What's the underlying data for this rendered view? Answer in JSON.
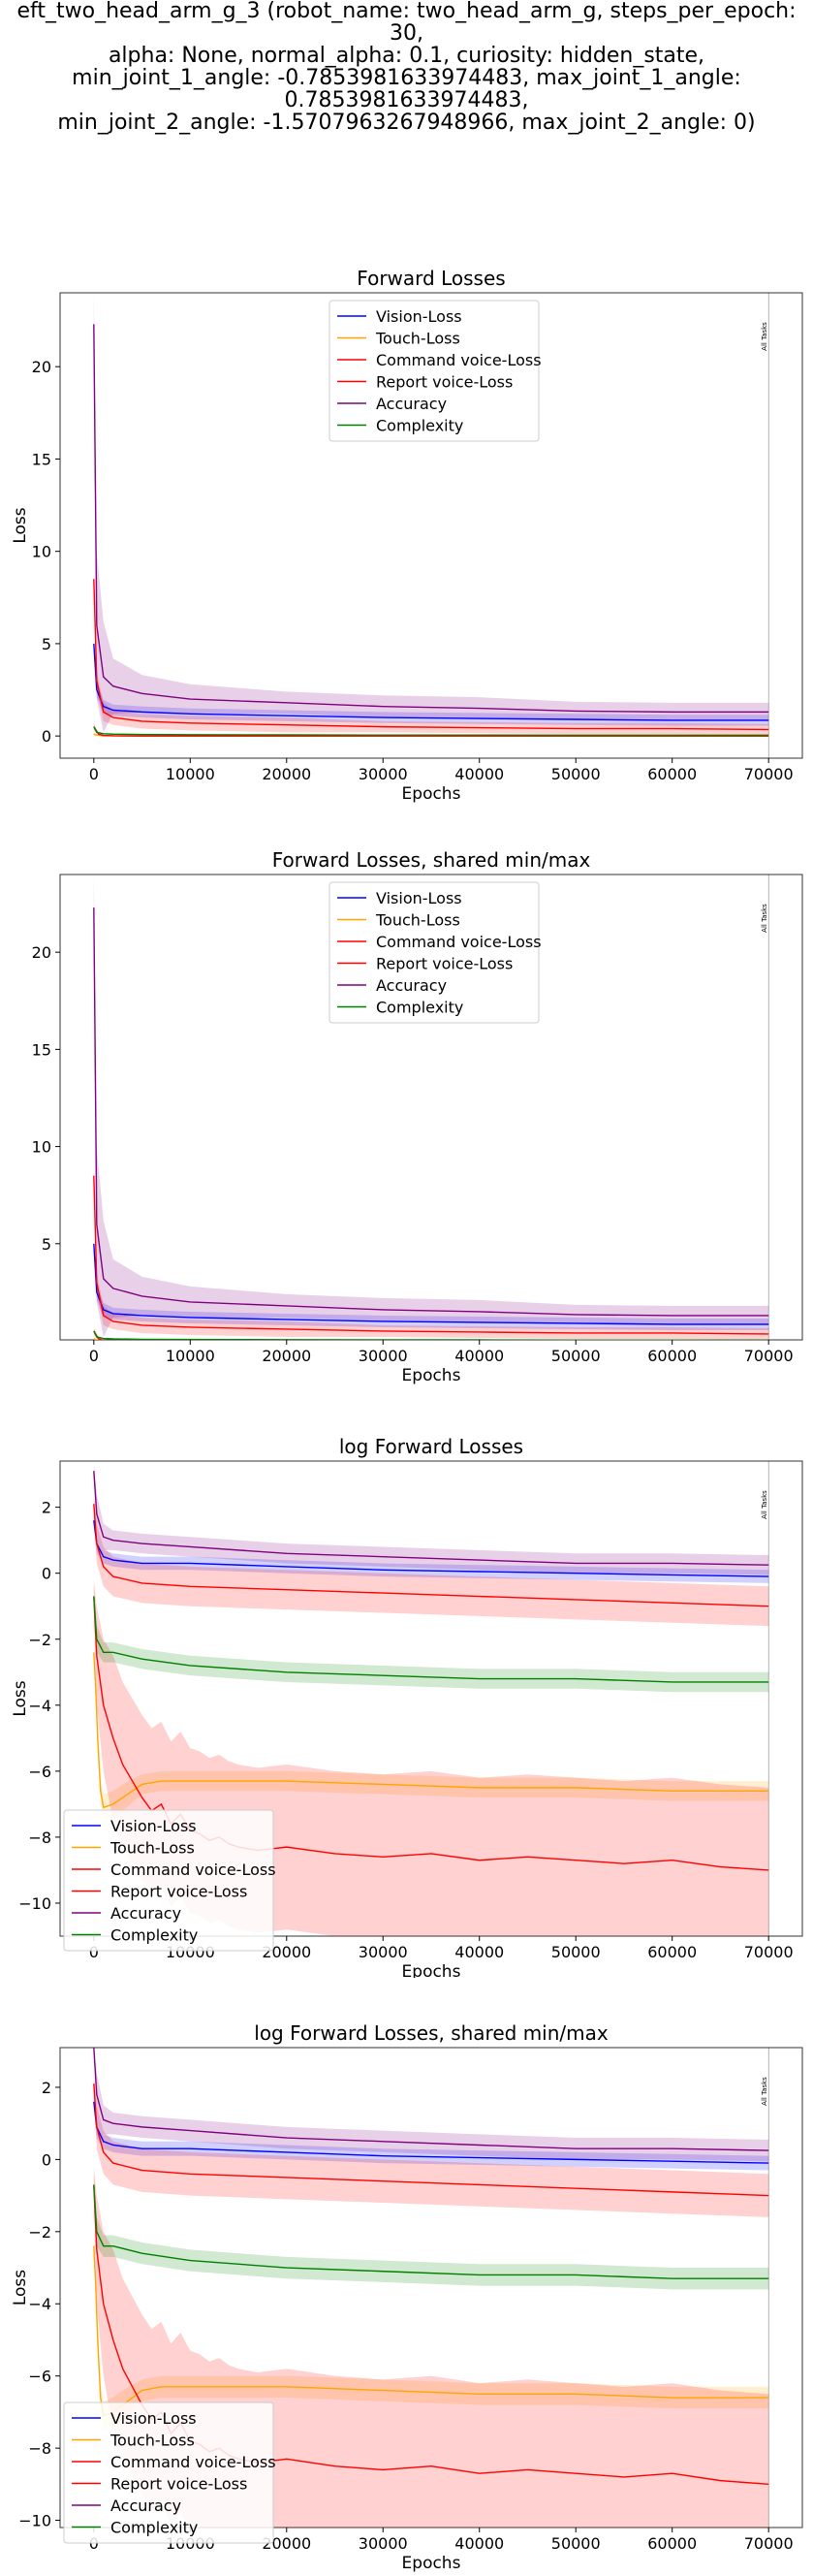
{
  "figure_title": "eft_two_head_arm_g_3 (robot_name: two_head_arm_g, steps_per_epoch: 30,\nalpha: None, normal_alpha: 0.1, curiosity: hidden_state,\nmin_joint_1_angle: -0.7853981633974483, max_joint_1_angle: 0.7853981633974483,\nmin_joint_2_angle: -1.5707963267948966, max_joint_2_angle: 0)",
  "colors": {
    "vision": "#0000ff",
    "touch": "#ffa500",
    "command": "#ff0000",
    "report": "#ff0000",
    "accuracy": "#800080",
    "complexity": "#008000"
  },
  "chart_data": [
    {
      "type": "line",
      "title": "Forward Losses",
      "xlabel": "Epochs",
      "ylabel": "Loss",
      "xlim": [
        -3500,
        73500
      ],
      "ylim": [
        -1.2,
        24.0
      ],
      "xticks": [
        0,
        10000,
        20000,
        30000,
        40000,
        50000,
        60000,
        70000
      ],
      "yticks": [
        0,
        5,
        10,
        15,
        20
      ],
      "marker_label": "All Tasks",
      "marker_x": 70000,
      "legend_loc": "upper center",
      "series": [
        {
          "name": "Vision-Loss",
          "color": "vision",
          "x": [
            0,
            300,
            1000,
            2000,
            5000,
            10000,
            20000,
            30000,
            40000,
            50000,
            60000,
            70000
          ],
          "y": [
            5.0,
            2.5,
            1.6,
            1.4,
            1.3,
            1.2,
            1.1,
            1.0,
            0.95,
            0.9,
            0.85,
            0.85
          ],
          "band": [
            0.4,
            0.4,
            0.35,
            0.3,
            0.3,
            0.3,
            0.3,
            0.3,
            0.3,
            0.3,
            0.3,
            0.3
          ]
        },
        {
          "name": "Touch-Loss",
          "color": "touch",
          "x": [
            0,
            300,
            1000,
            70000
          ],
          "y": [
            0.1,
            0.05,
            0.01,
            0.0
          ],
          "band": [
            0.1,
            0.05,
            0.0,
            0.0
          ]
        },
        {
          "name": "Command voice-Loss",
          "color": "command",
          "x": [
            0,
            300,
            1000,
            2000,
            5000,
            10000,
            20000,
            30000,
            40000,
            50000,
            60000,
            70000
          ],
          "y": [
            8.5,
            3.0,
            1.3,
            1.0,
            0.8,
            0.7,
            0.6,
            0.5,
            0.45,
            0.4,
            0.4,
            0.35
          ],
          "band": [
            0.5,
            0.5,
            0.5,
            0.4,
            0.4,
            0.4,
            0.4,
            0.3,
            0.3,
            0.3,
            0.3,
            0.3
          ]
        },
        {
          "name": "Report voice-Loss",
          "color": "report",
          "x": [
            0,
            500,
            1000,
            2000,
            5000,
            70000
          ],
          "y": [
            0.5,
            0.1,
            0.03,
            0.01,
            0.0,
            0.0
          ],
          "band": [
            0.2,
            0.05,
            0.0,
            0.0,
            0.0,
            0.0
          ]
        },
        {
          "name": "Accuracy",
          "color": "accuracy",
          "x": [
            0,
            300,
            1000,
            2000,
            5000,
            10000,
            20000,
            30000,
            40000,
            50000,
            60000,
            70000
          ],
          "y": [
            22.3,
            6.0,
            3.2,
            2.7,
            2.3,
            2.0,
            1.8,
            1.6,
            1.5,
            1.35,
            1.3,
            1.3
          ],
          "band": [
            2.0,
            4.0,
            3.0,
            1.5,
            1.0,
            0.8,
            0.6,
            0.6,
            0.6,
            0.5,
            0.5,
            0.5
          ]
        },
        {
          "name": "Complexity",
          "color": "complexity",
          "x": [
            0,
            300,
            1000,
            2000,
            5000,
            10000,
            20000,
            30000,
            40000,
            50000,
            60000,
            70000
          ],
          "y": [
            0.5,
            0.2,
            0.12,
            0.1,
            0.08,
            0.07,
            0.06,
            0.05,
            0.05,
            0.04,
            0.04,
            0.04
          ],
          "band": [
            0.1,
            0.05,
            0.02,
            0.02,
            0.02,
            0.02,
            0.02,
            0.02,
            0.02,
            0.02,
            0.02,
            0.02
          ]
        }
      ]
    },
    {
      "type": "line",
      "title": "Forward Losses, shared min/max",
      "xlabel": "Epochs",
      "ylabel": "",
      "xlim": [
        -3500,
        73500
      ],
      "ylim": [
        0.05,
        24.0
      ],
      "xticks": [
        0,
        10000,
        20000,
        30000,
        40000,
        50000,
        60000,
        70000
      ],
      "yticks": [
        5,
        10,
        15,
        20
      ],
      "marker_label": "All Tasks",
      "marker_x": 70000,
      "legend_loc": "upper center",
      "series_from": 0
    },
    {
      "type": "line",
      "title": "log Forward Losses",
      "xlabel": "Epochs",
      "ylabel": "Loss",
      "xlim": [
        -3500,
        73500
      ],
      "ylim": [
        -11.0,
        3.4
      ],
      "xticks": [
        0,
        10000,
        20000,
        30000,
        40000,
        50000,
        60000,
        70000
      ],
      "yticks": [
        -10,
        -8,
        -6,
        -4,
        -2,
        0,
        2
      ],
      "marker_label": "All Tasks",
      "marker_x": 70000,
      "legend_loc": "lower left",
      "series": [
        {
          "name": "Vision-Loss",
          "color": "vision",
          "x": [
            0,
            300,
            1000,
            2000,
            5000,
            10000,
            20000,
            30000,
            40000,
            50000,
            60000,
            70000
          ],
          "y": [
            1.6,
            0.9,
            0.5,
            0.4,
            0.3,
            0.3,
            0.2,
            0.1,
            0.05,
            0.0,
            -0.05,
            -0.1
          ],
          "band": [
            0.2,
            0.3,
            0.2,
            0.2,
            0.2,
            0.2,
            0.2,
            0.2,
            0.2,
            0.2,
            0.2,
            0.2
          ]
        },
        {
          "name": "Touch-Loss",
          "color": "touch",
          "x": [
            0,
            200,
            400,
            700,
            1000,
            2000,
            3000,
            5000,
            7000,
            10000,
            15000,
            20000,
            30000,
            40000,
            50000,
            60000,
            70000
          ],
          "y": [
            -2.4,
            -3.5,
            -5.0,
            -6.6,
            -7.1,
            -7.0,
            -6.8,
            -6.4,
            -6.3,
            -6.3,
            -6.3,
            -6.3,
            -6.4,
            -6.5,
            -6.5,
            -6.6,
            -6.6
          ],
          "band": [
            0.3,
            0.4,
            0.4,
            0.4,
            0.4,
            0.4,
            0.4,
            0.3,
            0.3,
            0.3,
            0.3,
            0.3,
            0.3,
            0.3,
            0.3,
            0.3,
            0.3
          ]
        },
        {
          "name": "Command voice-Loss",
          "color": "command",
          "x": [
            0,
            300,
            1000,
            2000,
            5000,
            10000,
            20000,
            30000,
            40000,
            50000,
            60000,
            70000
          ],
          "y": [
            2.1,
            0.9,
            0.2,
            -0.1,
            -0.3,
            -0.4,
            -0.5,
            -0.6,
            -0.7,
            -0.8,
            -0.9,
            -1.0
          ],
          "band": [
            0.3,
            0.6,
            0.6,
            0.6,
            0.6,
            0.6,
            0.6,
            0.6,
            0.6,
            0.6,
            0.6,
            0.6
          ]
        },
        {
          "name": "Report voice-Loss",
          "color": "report",
          "x": [
            0,
            300,
            1000,
            2000,
            3000,
            4000,
            5000,
            6000,
            7000,
            8000,
            9000,
            10000,
            11000,
            12000,
            13000,
            14000,
            15000,
            17000,
            20000,
            25000,
            30000,
            35000,
            40000,
            45000,
            50000,
            55000,
            60000,
            65000,
            70000
          ],
          "y": [
            -0.7,
            -2.5,
            -4.0,
            -5.0,
            -5.8,
            -6.3,
            -6.8,
            -7.2,
            -7.0,
            -7.6,
            -7.3,
            -7.8,
            -7.9,
            -8.1,
            -8.0,
            -8.2,
            -8.3,
            -8.4,
            -8.3,
            -8.5,
            -8.6,
            -8.5,
            -8.7,
            -8.6,
            -8.7,
            -8.8,
            -8.7,
            -8.9,
            -9.0
          ],
          "band": [
            0.5,
            1.5,
            2.0,
            2.5,
            2.5,
            2.5,
            2.5,
            2.5,
            2.5,
            2.5,
            2.5,
            2.5,
            2.5,
            2.5,
            2.5,
            2.5,
            2.5,
            2.5,
            2.5,
            2.5,
            2.5,
            2.5,
            2.5,
            2.5,
            2.5,
            2.5,
            2.5,
            2.5,
            2.5
          ]
        },
        {
          "name": "Accuracy",
          "color": "accuracy",
          "x": [
            0,
            300,
            1000,
            2000,
            5000,
            10000,
            20000,
            30000,
            40000,
            50000,
            60000,
            70000
          ],
          "y": [
            3.1,
            1.8,
            1.1,
            1.0,
            0.9,
            0.8,
            0.6,
            0.5,
            0.4,
            0.3,
            0.3,
            0.25
          ],
          "band": [
            0.2,
            0.6,
            0.4,
            0.3,
            0.3,
            0.3,
            0.3,
            0.3,
            0.3,
            0.3,
            0.3,
            0.3
          ]
        },
        {
          "name": "Complexity",
          "color": "complexity",
          "x": [
            0,
            300,
            1000,
            2000,
            5000,
            10000,
            20000,
            30000,
            40000,
            50000,
            60000,
            70000
          ],
          "y": [
            -0.7,
            -2.0,
            -2.4,
            -2.4,
            -2.6,
            -2.8,
            -3.0,
            -3.1,
            -3.2,
            -3.2,
            -3.3,
            -3.3
          ],
          "band": [
            0.3,
            0.4,
            0.3,
            0.3,
            0.3,
            0.3,
            0.3,
            0.3,
            0.3,
            0.3,
            0.3,
            0.3
          ]
        }
      ]
    },
    {
      "type": "line",
      "title": "log Forward Losses, shared min/max",
      "xlabel": "Epochs",
      "ylabel": "Loss",
      "xlim": [
        -3500,
        73500
      ],
      "ylim": [
        -10.2,
        3.1
      ],
      "xticks": [
        0,
        10000,
        20000,
        30000,
        40000,
        50000,
        60000,
        70000
      ],
      "yticks": [
        -10,
        -8,
        -6,
        -4,
        -2,
        0,
        2
      ],
      "marker_label": "All Tasks",
      "marker_x": 70000,
      "legend_loc": "lower left",
      "series_from": 2
    }
  ]
}
